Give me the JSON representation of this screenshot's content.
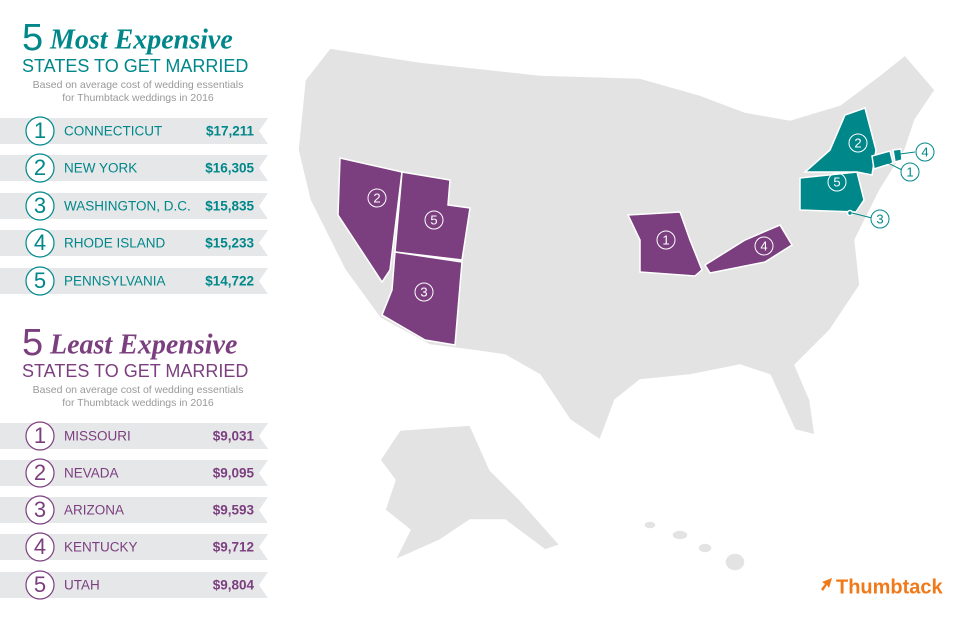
{
  "most_expensive": {
    "number": "5",
    "title": "Most Expensive",
    "subtitle": "STATES TO GET MARRIED",
    "note": [
      "Based on average cost of wedding essentials",
      "for Thumbtack weddings in 2016"
    ],
    "rows": [
      {
        "rank": "1",
        "state": "CONNECTICUT",
        "cost": "$17,211"
      },
      {
        "rank": "2",
        "state": "NEW YORK",
        "cost": "$16,305"
      },
      {
        "rank": "3",
        "state": "WASHINGTON, D.C.",
        "cost": "$15,835"
      },
      {
        "rank": "4",
        "state": "RHODE ISLAND",
        "cost": "$15,233"
      },
      {
        "rank": "5",
        "state": "PENNSYLVANIA",
        "cost": "$14,722"
      }
    ]
  },
  "least_expensive": {
    "number": "5",
    "title": "Least Expensive",
    "subtitle": "STATES TO GET MARRIED",
    "note": [
      "Based on average cost of wedding essentials",
      "for Thumbtack weddings in 2016"
    ],
    "rows": [
      {
        "rank": "1",
        "state": "MISSOURI",
        "cost": "$9,031"
      },
      {
        "rank": "2",
        "state": "NEVADA",
        "cost": "$9,095"
      },
      {
        "rank": "3",
        "state": "ARIZONA",
        "cost": "$9,593"
      },
      {
        "rank": "4",
        "state": "KENTUCKY",
        "cost": "$9,712"
      },
      {
        "rank": "5",
        "state": "UTAH",
        "cost": "$9,804"
      }
    ]
  },
  "logo": "Thumbtack"
}
